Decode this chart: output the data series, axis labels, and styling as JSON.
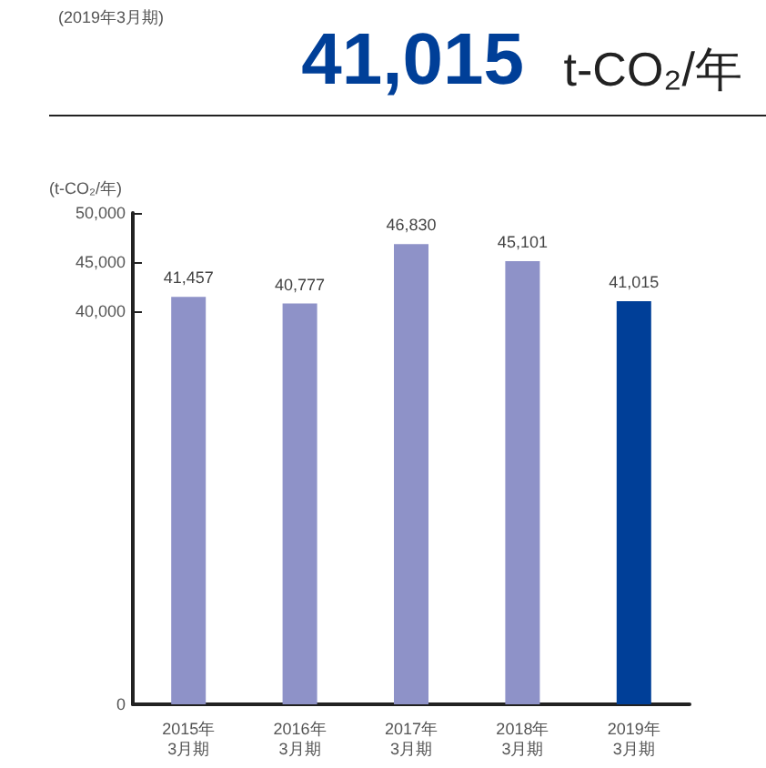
{
  "chart_data": {
    "type": "bar",
    "title": "41,015",
    "subtitle": "t-CO₂/年",
    "annotations": [
      "(2019年3月期)"
    ],
    "ylabel": "(t-CO₂/年)",
    "categories": [
      "2015年\n3月期",
      "2016年\n3月期",
      "2017年\n3月期",
      "2018年\n3月期",
      "2019年\n3月期"
    ],
    "values": [
      41457,
      40777,
      46830,
      45101,
      41015
    ],
    "colors": [
      "#8e92c8",
      "#8e92c8",
      "#8e92c8",
      "#8e92c8",
      "#003f98"
    ],
    "value_labels": [
      "41,457",
      "40,777",
      "46,830",
      "45,101",
      "41,015"
    ],
    "ylim": [
      0,
      50000
    ],
    "yticks": [
      0,
      {
        "value": 40000,
        "label": "40,000"
      },
      {
        "value": 45000,
        "label": "45,000"
      },
      {
        "value": 50000,
        "label": "50,000"
      }
    ],
    "grid": false
  }
}
